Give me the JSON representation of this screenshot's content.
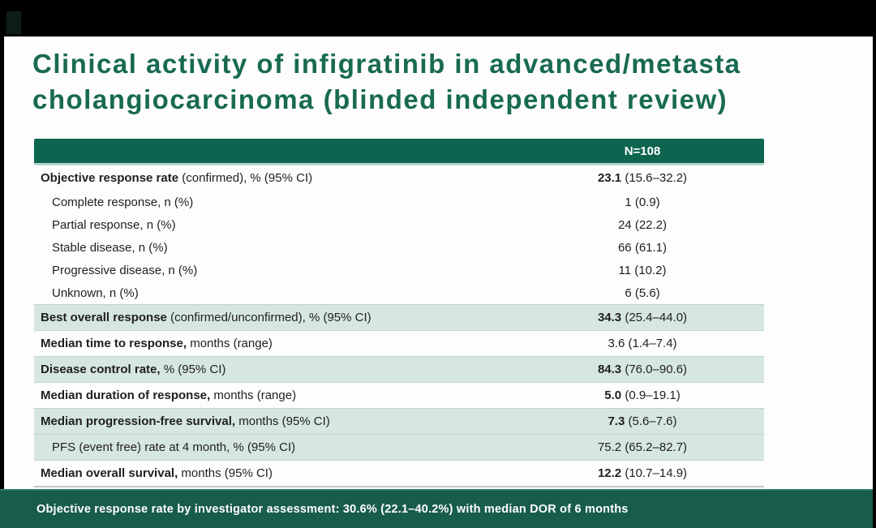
{
  "colors": {
    "black": "#000000",
    "corner_green": "#0f1d17",
    "title_green": "#186a52",
    "header_green": "#0d6550",
    "band_green": "#d6e6e0",
    "footer_green": "#185c4c"
  },
  "slide": {
    "title_line1": "Clinical activity of infigratinib in advanced/metasta",
    "title_line2": "cholangiocarcinoma (blinded independent review)",
    "table": {
      "header_value": "N=108",
      "rows": [
        {
          "label_bold": "Objective response rate",
          "label_rest": " (confirmed), % (95% CI)",
          "value_bold": "23.1",
          "value_rest": " (15.6–32.2)",
          "indent": false,
          "sub": false,
          "green": false
        },
        {
          "label_bold": "",
          "label_rest": "Complete response, n (%)",
          "value_bold": "",
          "value_rest": "1 (0.9)",
          "indent": true,
          "sub": true,
          "green": false
        },
        {
          "label_bold": "",
          "label_rest": "Partial response, n (%)",
          "value_bold": "",
          "value_rest": "24 (22.2)",
          "indent": true,
          "sub": true,
          "green": false
        },
        {
          "label_bold": "",
          "label_rest": "Stable disease, n (%)",
          "value_bold": "",
          "value_rest": "66 (61.1)",
          "indent": true,
          "sub": true,
          "green": false
        },
        {
          "label_bold": "",
          "label_rest": "Progressive disease, n (%)",
          "value_bold": "",
          "value_rest": "11 (10.2)",
          "indent": true,
          "sub": true,
          "green": false
        },
        {
          "label_bold": "",
          "label_rest": "Unknown, n (%)",
          "value_bold": "",
          "value_rest": "6 (5.6)",
          "indent": true,
          "sub": true,
          "green": false
        },
        {
          "label_bold": "Best overall response",
          "label_rest": " (confirmed/unconfirmed), % (95% CI)",
          "value_bold": "34.3",
          "value_rest": " (25.4–44.0)",
          "indent": false,
          "sub": false,
          "green": true
        },
        {
          "label_bold": "Median time to response,",
          "label_rest": " months (range)",
          "value_bold": "",
          "value_rest": "3.6 (1.4–7.4)",
          "indent": false,
          "sub": false,
          "green": false
        },
        {
          "label_bold": "Disease control rate,",
          "label_rest": " % (95% CI)",
          "value_bold": "84.3",
          "value_rest": " (76.0–90.6)",
          "indent": false,
          "sub": false,
          "green": true
        },
        {
          "label_bold": "Median duration of response,",
          "label_rest": " months (range)",
          "value_bold": "5.0",
          "value_rest": " (0.9–19.1)",
          "indent": false,
          "sub": false,
          "green": false
        },
        {
          "label_bold": "Median progression-free survival,",
          "label_rest": " months (95% CI)",
          "value_bold": "7.3",
          "value_rest": " (5.6–7.6)",
          "indent": false,
          "sub": false,
          "green": true
        },
        {
          "label_bold": "",
          "label_rest": "PFS (event free) rate at 4 month, % (95% CI)",
          "value_bold": "",
          "value_rest": "75.2 (65.2–82.7)",
          "indent": true,
          "sub": false,
          "green": true
        },
        {
          "label_bold": "Median overall survival,",
          "label_rest": " months (95% CI)",
          "value_bold": "12.2",
          "value_rest": " (10.7–14.9)",
          "indent": false,
          "sub": false,
          "green": false
        }
      ]
    },
    "footer_note": "Objective response rate by investigator assessment: 30.6% (22.1–40.2%) with median DOR of 6 months"
  }
}
